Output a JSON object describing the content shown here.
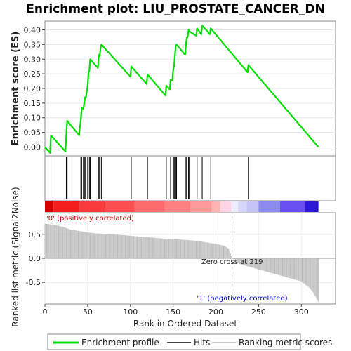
{
  "chart_data": {
    "type": "line",
    "title": "Enrichment plot: LIU_PROSTATE_CANCER_DN",
    "top_panel": {
      "ylabel": "Enrichment score (ES)",
      "ylim": [
        -0.03,
        0.43
      ],
      "yticks": [
        0.0,
        0.05,
        0.1,
        0.15,
        0.2,
        0.25,
        0.3,
        0.35,
        0.4
      ],
      "ytick_labels": [
        "0.00",
        "0.05",
        "0.10",
        "0.15",
        "0.20",
        "0.25",
        "0.30",
        "0.35",
        "0.40"
      ],
      "series": [
        {
          "name": "Enrichment profile",
          "color": "#00dd00",
          "x": [
            0,
            6,
            7,
            24,
            25,
            26,
            40,
            41,
            42,
            43,
            45,
            46,
            47,
            48,
            50,
            51,
            52,
            53,
            62,
            63,
            64,
            65,
            66,
            100,
            101,
            119,
            120,
            141,
            142,
            146,
            147,
            149,
            150,
            151,
            152,
            153,
            154,
            164,
            165,
            166,
            167,
            168,
            169,
            177,
            178,
            183,
            184,
            193,
            194,
            237,
            238,
            320
          ],
          "y": [
            0.0,
            -0.02,
            0.04,
            -0.015,
            0.04,
            0.09,
            0.04,
            0.07,
            0.09,
            0.135,
            0.13,
            0.15,
            0.17,
            0.17,
            0.21,
            0.255,
            0.26,
            0.3,
            0.27,
            0.315,
            0.31,
            0.335,
            0.35,
            0.24,
            0.275,
            0.215,
            0.248,
            0.176,
            0.21,
            0.197,
            0.23,
            0.227,
            0.26,
            0.275,
            0.31,
            0.345,
            0.35,
            0.315,
            0.35,
            0.375,
            0.375,
            0.4,
            0.395,
            0.38,
            0.405,
            0.385,
            0.415,
            0.385,
            0.405,
            0.255,
            0.28,
            0.0
          ]
        }
      ]
    },
    "hits": {
      "name": "Hits",
      "positions": [
        7,
        25,
        26,
        42,
        43,
        45,
        46,
        47,
        48,
        50,
        52,
        53,
        63,
        64,
        66,
        101,
        120,
        142,
        147,
        150,
        151,
        152,
        153,
        154,
        165,
        166,
        168,
        169,
        178,
        184,
        194,
        238
      ]
    },
    "bottom_panel": {
      "ylabel": "Ranked list metric (Signal2Noise)",
      "xlabel": "Rank in Ordered Dataset",
      "xlim": [
        0,
        340
      ],
      "ylim": [
        -0.95,
        0.95
      ],
      "yticks": [
        -0.5,
        0.0,
        0.5
      ],
      "ytick_labels": [
        "-0.5",
        "0.0",
        "0.5"
      ],
      "xticks": [
        0,
        50,
        100,
        150,
        200,
        250,
        300
      ],
      "xtick_labels": [
        "0",
        "50",
        "100",
        "150",
        "200",
        "250",
        "300"
      ],
      "metric_profile": {
        "name": "Ranking metric scores",
        "x": [
          0,
          10,
          20,
          30,
          40,
          50,
          60,
          80,
          100,
          120,
          140,
          160,
          180,
          200,
          210,
          215,
          219,
          225,
          240,
          260,
          280,
          300,
          305,
          310,
          315,
          320
        ],
        "y": [
          0.72,
          0.7,
          0.66,
          0.6,
          0.57,
          0.54,
          0.52,
          0.5,
          0.47,
          0.44,
          0.41,
          0.39,
          0.36,
          0.3,
          0.26,
          0.2,
          0.0,
          -0.1,
          -0.18,
          -0.28,
          -0.38,
          -0.48,
          -0.55,
          -0.62,
          -0.75,
          -0.9
        ]
      },
      "zero_cross_label": "Zero cross at 219",
      "zero_cross_rank": 219,
      "positive_label": "'0' (positively correlated)",
      "negative_label": "'1' (negatively correlated)"
    },
    "heat_bar": {
      "segments": [
        {
          "from": 0,
          "to": 10,
          "color": "#d40000"
        },
        {
          "from": 10,
          "to": 40,
          "color": "#f21e1e"
        },
        {
          "from": 40,
          "to": 70,
          "color": "#f83c3c"
        },
        {
          "from": 70,
          "to": 105,
          "color": "#fb4f4f"
        },
        {
          "from": 105,
          "to": 140,
          "color": "#fc6b6b"
        },
        {
          "from": 140,
          "to": 170,
          "color": "#fd7f7f"
        },
        {
          "from": 170,
          "to": 195,
          "color": "#fe9999"
        },
        {
          "from": 195,
          "to": 205,
          "color": "#ffb3b3"
        },
        {
          "from": 205,
          "to": 218,
          "color": "#ffd5e5"
        },
        {
          "from": 218,
          "to": 226,
          "color": "#eeeeff"
        },
        {
          "from": 226,
          "to": 236,
          "color": "#d6d6fb"
        },
        {
          "from": 236,
          "to": 250,
          "color": "#c4c4f7"
        },
        {
          "from": 250,
          "to": 275,
          "color": "#8a8aef"
        },
        {
          "from": 275,
          "to": 304,
          "color": "#6a4ff0"
        },
        {
          "from": 304,
          "to": 320,
          "color": "#2e18d8"
        }
      ]
    },
    "legend": {
      "items": [
        {
          "name": "Enrichment profile",
          "color": "#00dd00"
        },
        {
          "name": "Hits",
          "color": "#000000"
        },
        {
          "name": "Ranking metric scores",
          "color": "#bbbbbb"
        }
      ]
    },
    "grid": true,
    "legend_placement": "bottom"
  }
}
